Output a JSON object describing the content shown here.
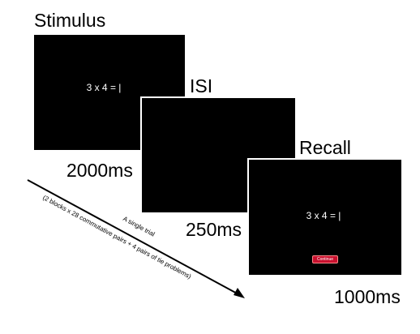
{
  "stimulus": {
    "title": "Stimulus",
    "equation": "3 x 4 = |",
    "duration": "2000ms"
  },
  "isi": {
    "title": "ISI",
    "duration": "250ms"
  },
  "recall": {
    "title": "Recall",
    "equation": "3 x 4 = |",
    "button": "Continue",
    "duration": "1000ms"
  },
  "trial": {
    "line1": "A single trial",
    "line2": "(2 blocks x 28 commutative pairs + 4 pairs of tie problems)"
  },
  "colors": {
    "screen": "#000000",
    "border": "#ffffff",
    "button": "#c8102e"
  }
}
